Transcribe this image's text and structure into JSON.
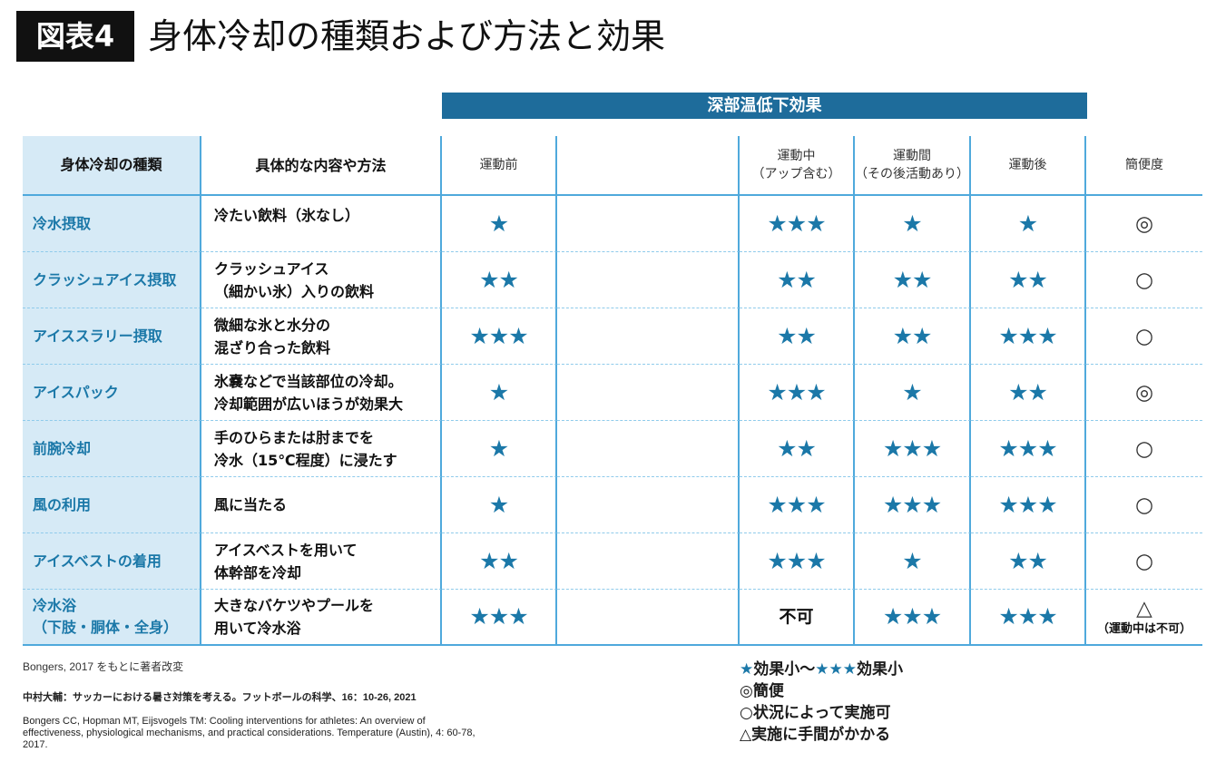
{
  "title": {
    "badge": "図表4",
    "text": "身体冷却の種類および方法と効果"
  },
  "group_header": "深部温低下効果",
  "header": {
    "type": "身体冷却の種類",
    "method": "具体的な内容や方法",
    "before": "運動前",
    "during": [
      "運動中",
      "（アップ含む）"
    ],
    "between": [
      "運動間",
      "（その後活動あり）"
    ],
    "after": "運動後",
    "ease": "簡便度"
  },
  "rows": [
    {
      "type": [
        "冷水摂取"
      ],
      "method": [
        "冷たい飲料（氷なし）"
      ],
      "before": "★",
      "during": "★★★",
      "between": "★",
      "after": "★",
      "ease": [
        "◎"
      ]
    },
    {
      "type": [
        "クラッシュアイス摂取"
      ],
      "method": [
        "クラッシュアイス",
        "（細かい氷）入りの飲料"
      ],
      "before": "★★",
      "during": "★★",
      "between": "★★",
      "after": "★★",
      "ease": [
        "○"
      ]
    },
    {
      "type": [
        "アイススラリー摂取"
      ],
      "method": [
        "微細な氷と水分の",
        "混ざり合った飲料"
      ],
      "before": "★★★",
      "during": "★★",
      "between": "★★",
      "after": "★★★",
      "ease": [
        "○"
      ]
    },
    {
      "type": [
        "アイスパック"
      ],
      "method": [
        "氷嚢などで当該部位の冷却。",
        "冷却範囲が広いほうが効果大"
      ],
      "before": "★",
      "during": "★★★",
      "between": "★",
      "after": "★★",
      "ease": [
        "◎"
      ]
    },
    {
      "type": [
        "前腕冷却"
      ],
      "method": [
        "手のひらまたは肘までを",
        "冷水（15℃程度）に浸たす"
      ],
      "before": "★",
      "during": "★★",
      "between": "★★★",
      "after": "★★★",
      "ease": [
        "○"
      ]
    },
    {
      "type": [
        "風の利用"
      ],
      "method": [
        "風に当たる"
      ],
      "before": "★",
      "during": "★★★",
      "between": "★★★",
      "after": "★★★",
      "ease": [
        "○"
      ]
    },
    {
      "type": [
        "アイスベストの着用"
      ],
      "method": [
        "アイスベストを用いて",
        "体幹部を冷却"
      ],
      "before": "★★",
      "during": "★★★",
      "between": "★",
      "after": "★★",
      "ease": [
        "○"
      ]
    },
    {
      "type": [
        "冷水浴",
        "（下肢・胴体・全身）"
      ],
      "method": [
        "大きなバケツやプールを",
        "用いて冷水浴"
      ],
      "before": "★★★",
      "during": "不可",
      "between": "★★★",
      "after": "★★★",
      "ease": [
        "△",
        "（運動中は不可）"
      ]
    }
  ],
  "source": "Bongers, 2017 をもとに著者改変",
  "references": [
    [
      "中村大輔：サッカーにおける暑さ対策を考える。フットボールの科学、16：10-26, 2021"
    ],
    [
      "Bongers CC, Hopman MT, Eijsvogels TM: Cooling interventions for athletes: An overview of",
      "effectiveness, physiological mechanisms, and practical considerations. Temperature (Austin), 4: 60-78,",
      "2017."
    ]
  ],
  "legend": {
    "rating": {
      "low_mark": "★",
      "low_text": "効果小〜",
      "high_mark": "★★★",
      "high_text": "効果小"
    },
    "ease_symbols": [
      "◎簡便",
      "○状況によって実施可",
      "△実施に手間がかかる"
    ]
  },
  "colors": {
    "accent": "#1b78a8",
    "band": "#1e6c9b",
    "label_bg": "#d6eaf6",
    "rule": "#4fa9dc",
    "dash": "#8fcbeb",
    "badge_bg": "#111111"
  }
}
